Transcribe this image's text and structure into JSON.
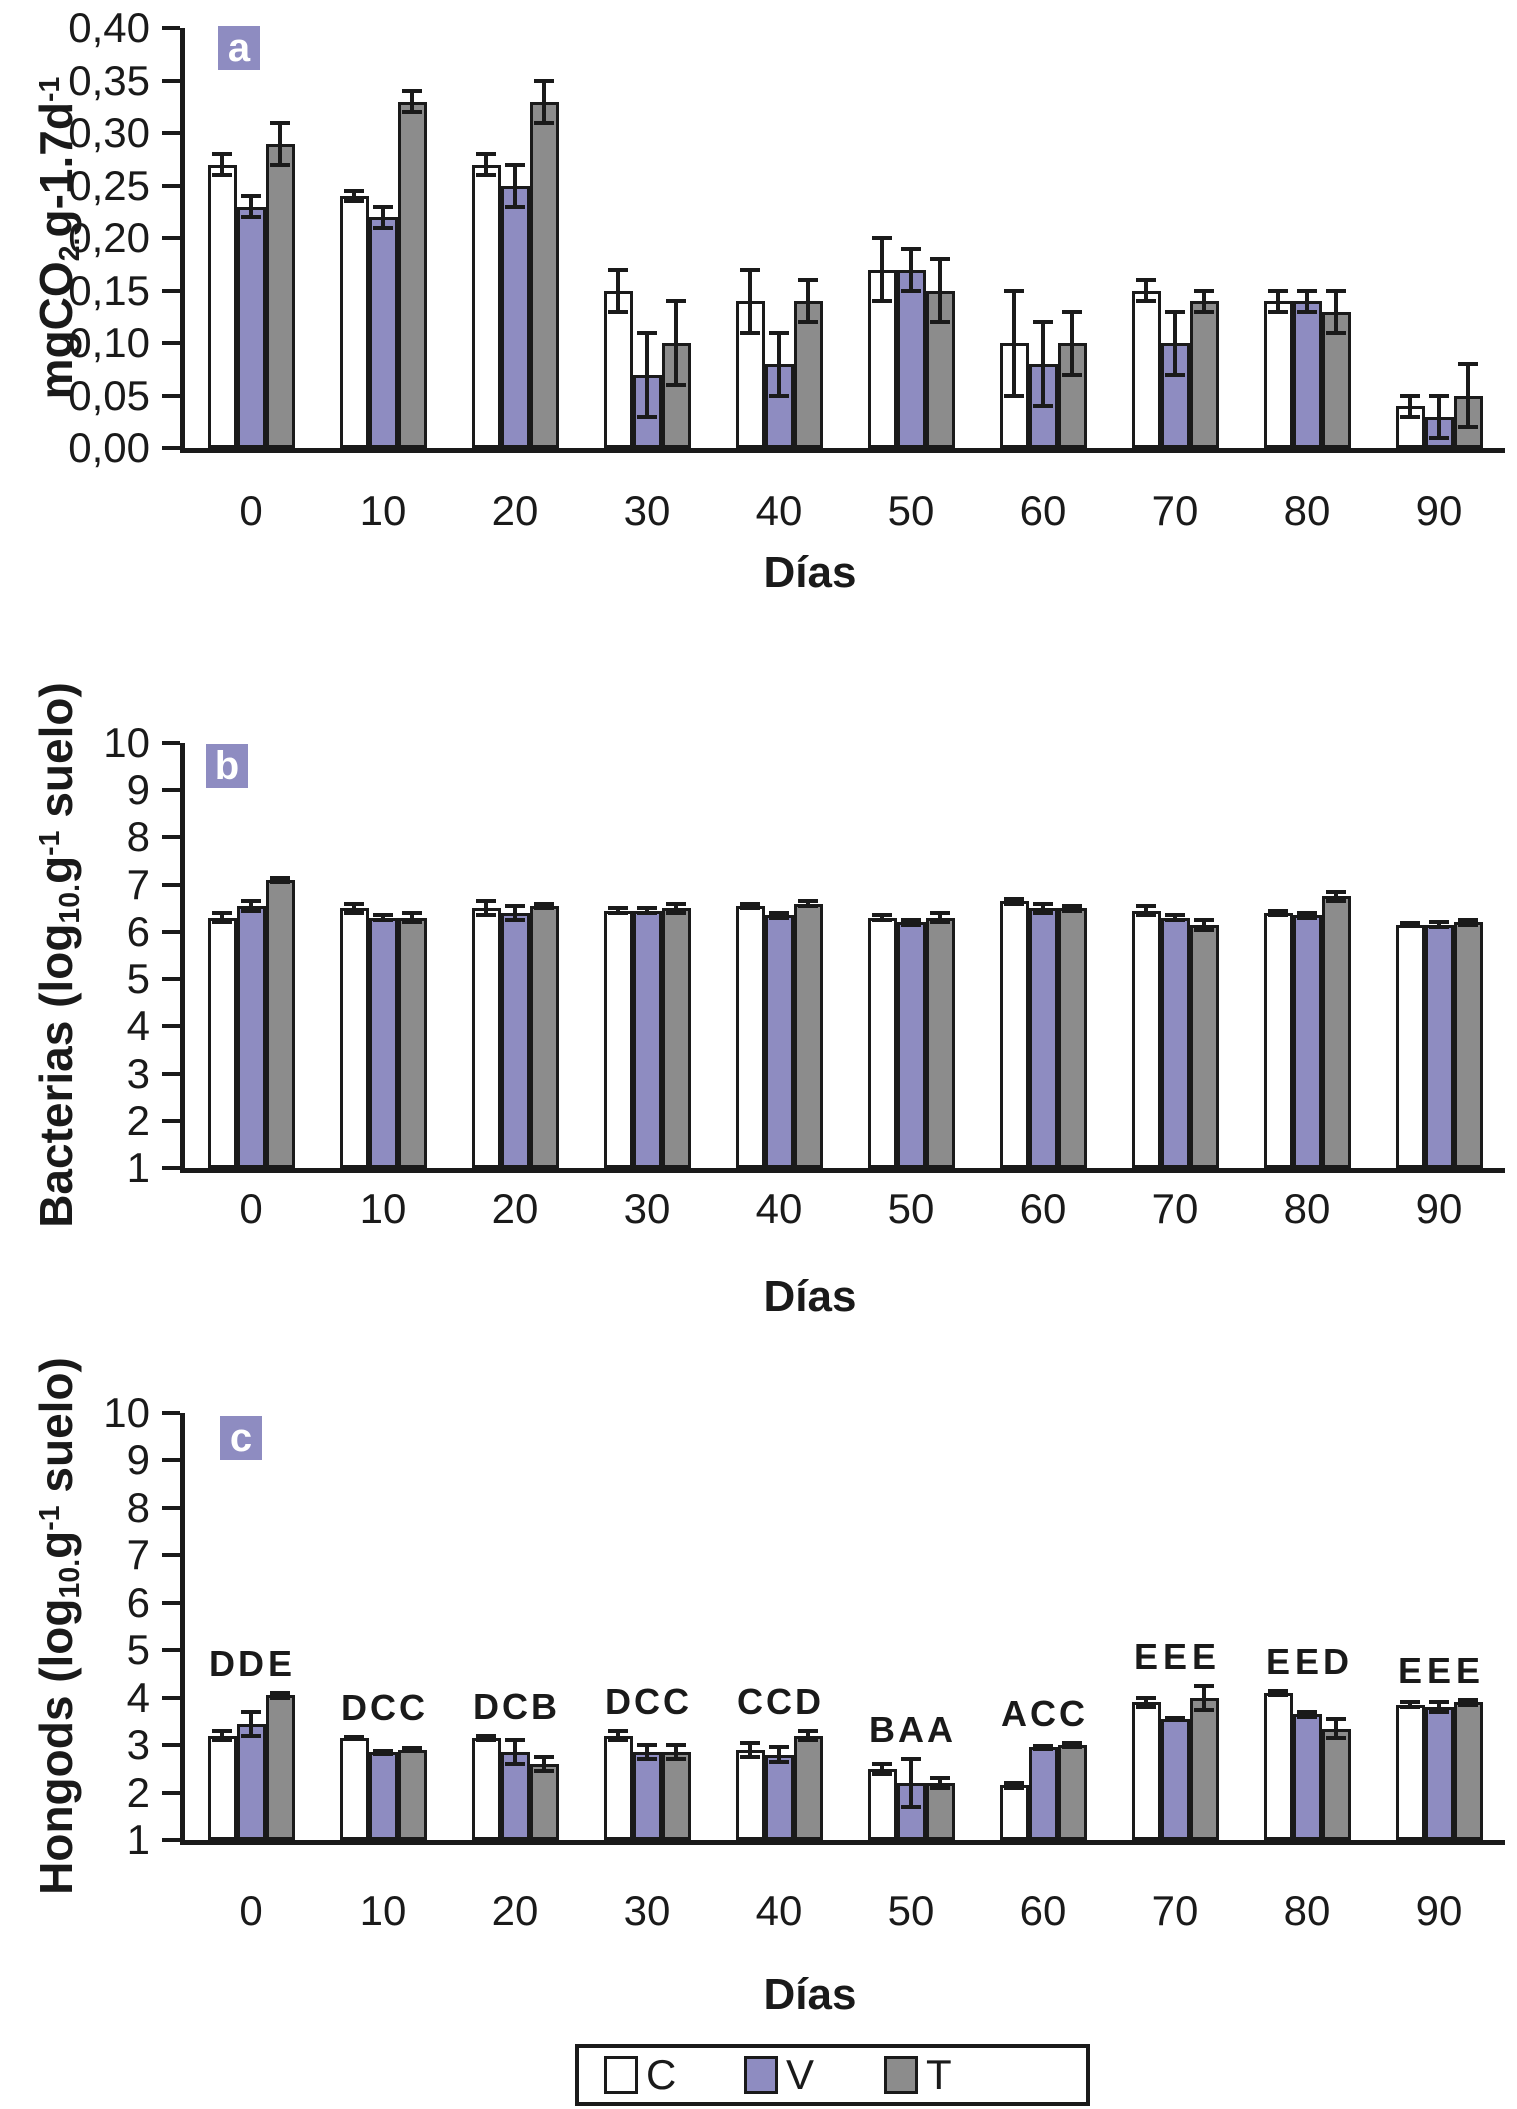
{
  "figure_colors": {
    "series_C_fill": "#ffffff",
    "series_V_fill": "#8e8cc1",
    "series_T_fill": "#8c8c8c",
    "badge_background": "#8e8cc1",
    "ink": "#1a1a1a"
  },
  "legend": {
    "items": [
      {
        "label": "C",
        "color": "#ffffff"
      },
      {
        "label": "V",
        "color": "#8e8cc1"
      },
      {
        "label": "T",
        "color": "#8c8c8c"
      }
    ]
  },
  "chart_data": [
    {
      "type": "bar",
      "panel_label": "a",
      "xlabel": "Días",
      "ylabel": "mgCO₂.g-1.7d⁻¹",
      "ylabel_segments": [
        [
          "mgCO"
        ],
        [
          "2.",
          "sub"
        ],
        [
          "g-1.7d"
        ],
        [
          "-1",
          "sup"
        ]
      ],
      "ylim": [
        0,
        0.4
      ],
      "ytick_step": 0.05,
      "ytick_decimals": 2,
      "decimal_comma": true,
      "grid": false,
      "legend_position": "none",
      "categories": [
        "0",
        "10",
        "20",
        "30",
        "40",
        "50",
        "60",
        "70",
        "80",
        "90"
      ],
      "series": [
        {
          "name": "C",
          "values": [
            0.27,
            0.24,
            0.27,
            0.15,
            0.14,
            0.17,
            0.1,
            0.15,
            0.14,
            0.04
          ],
          "errors": [
            0.01,
            0.005,
            0.01,
            0.02,
            0.03,
            0.03,
            0.05,
            0.01,
            0.01,
            0.01
          ]
        },
        {
          "name": "V",
          "values": [
            0.23,
            0.22,
            0.25,
            0.07,
            0.08,
            0.17,
            0.08,
            0.1,
            0.14,
            0.03
          ],
          "errors": [
            0.01,
            0.01,
            0.02,
            0.04,
            0.03,
            0.02,
            0.04,
            0.03,
            0.01,
            0.02
          ]
        },
        {
          "name": "T",
          "values": [
            0.29,
            0.33,
            0.33,
            0.1,
            0.14,
            0.15,
            0.1,
            0.14,
            0.13,
            0.05
          ],
          "errors": [
            0.02,
            0.01,
            0.02,
            0.04,
            0.02,
            0.03,
            0.03,
            0.01,
            0.02,
            0.03
          ]
        }
      ]
    },
    {
      "type": "bar",
      "panel_label": "b",
      "xlabel": "Días",
      "ylabel": "Bacterias (log₁₀.g⁻¹ suelo)",
      "ylabel_segments": [
        [
          "Bacterias (log"
        ],
        [
          "10.",
          "sub"
        ],
        [
          "g"
        ],
        [
          "-1",
          "sup"
        ],
        [
          " suelo)"
        ]
      ],
      "ylim": [
        1,
        10
      ],
      "ytick_step": 1,
      "ytick_decimals": 0,
      "decimal_comma": false,
      "grid": false,
      "legend_position": "none",
      "categories": [
        "0",
        "10",
        "20",
        "30",
        "40",
        "50",
        "60",
        "70",
        "80",
        "90"
      ],
      "series": [
        {
          "name": "C",
          "values": [
            6.3,
            6.5,
            6.5,
            6.45,
            6.55,
            6.3,
            6.65,
            6.45,
            6.4,
            6.15
          ],
          "errors": [
            0.1,
            0.1,
            0.15,
            0.05,
            0.05,
            0.05,
            0.05,
            0.1,
            0.05,
            0.03
          ]
        },
        {
          "name": "V",
          "values": [
            6.55,
            6.3,
            6.4,
            6.45,
            6.35,
            6.2,
            6.5,
            6.3,
            6.35,
            6.15
          ],
          "errors": [
            0.1,
            0.05,
            0.15,
            0.05,
            0.05,
            0.05,
            0.1,
            0.05,
            0.05,
            0.05
          ]
        },
        {
          "name": "T",
          "values": [
            7.1,
            6.3,
            6.55,
            6.5,
            6.6,
            6.3,
            6.5,
            6.15,
            6.75,
            6.2
          ],
          "errors": [
            0.05,
            0.1,
            0.05,
            0.1,
            0.05,
            0.1,
            0.05,
            0.1,
            0.1,
            0.05
          ]
        }
      ]
    },
    {
      "type": "bar",
      "panel_label": "c",
      "xlabel": "Días",
      "ylabel": "Hongods (log₁₀.g⁻¹ suelo)",
      "ylabel_segments": [
        [
          "Hongods (log"
        ],
        [
          "10.",
          "sub"
        ],
        [
          "g"
        ],
        [
          "-1",
          "sup"
        ],
        [
          " suelo)"
        ]
      ],
      "ylim": [
        1,
        10
      ],
      "ytick_step": 1,
      "ytick_decimals": 0,
      "decimal_comma": false,
      "grid": false,
      "legend_position": "none",
      "categories": [
        "0",
        "10",
        "20",
        "30",
        "40",
        "50",
        "60",
        "70",
        "80",
        "90"
      ],
      "series": [
        {
          "name": "C",
          "values": [
            3.2,
            3.15,
            3.15,
            3.2,
            2.9,
            2.5,
            2.15,
            3.9,
            4.1,
            3.85
          ],
          "errors": [
            0.1,
            0.03,
            0.05,
            0.1,
            0.15,
            0.1,
            0.05,
            0.1,
            0.05,
            0.05
          ]
        },
        {
          "name": "V",
          "values": [
            3.45,
            2.85,
            2.85,
            2.85,
            2.8,
            2.2,
            2.95,
            3.55,
            3.65,
            3.8
          ],
          "errors": [
            0.25,
            0.03,
            0.25,
            0.15,
            0.15,
            0.5,
            0.03,
            0.03,
            0.05,
            0.1
          ]
        },
        {
          "name": "T",
          "values": [
            4.05,
            2.9,
            2.6,
            2.85,
            3.2,
            2.2,
            3.0,
            4.0,
            3.35,
            3.9
          ],
          "errors": [
            0.05,
            0.03,
            0.15,
            0.15,
            0.1,
            0.1,
            0.05,
            0.25,
            0.2,
            0.05
          ]
        }
      ],
      "letters": [
        [
          "D",
          "D",
          "E"
        ],
        [
          "D",
          "C",
          "C"
        ],
        [
          "D",
          "C",
          "B"
        ],
        [
          "D",
          "C",
          "C"
        ],
        [
          "C",
          "C",
          "D"
        ],
        [
          "B",
          "A",
          "A"
        ],
        [
          "A",
          "C",
          "C"
        ],
        [
          "E",
          "E",
          "E"
        ],
        [
          "E",
          "E",
          "D"
        ],
        [
          "E",
          "E",
          "E"
        ]
      ]
    }
  ]
}
